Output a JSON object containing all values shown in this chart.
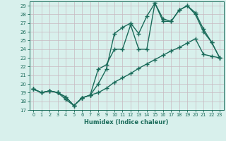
{
  "xlabel": "Humidex (Indice chaleur)",
  "bg_color": "#d8f0ec",
  "plot_bg_color": "#d8f0ec",
  "grid_color": "#c8b8c0",
  "line_color": "#1a6b5a",
  "ylim": [
    17,
    29.5
  ],
  "xlim": [
    -0.5,
    23.5
  ],
  "yticks": [
    17,
    18,
    19,
    20,
    21,
    22,
    23,
    24,
    25,
    26,
    27,
    28,
    29
  ],
  "xticks": [
    0,
    1,
    2,
    3,
    4,
    5,
    6,
    7,
    8,
    9,
    10,
    11,
    12,
    13,
    14,
    15,
    16,
    17,
    18,
    19,
    20,
    21,
    22,
    23
  ],
  "line1_x": [
    0,
    1,
    2,
    3,
    4,
    5,
    6,
    7,
    8,
    9,
    10,
    11,
    12,
    13,
    14,
    15,
    16,
    17,
    18,
    19,
    20,
    21,
    22,
    23
  ],
  "line1_y": [
    19.4,
    19.0,
    19.2,
    19.0,
    18.2,
    17.5,
    18.4,
    18.7,
    19.0,
    19.5,
    20.2,
    20.7,
    21.2,
    21.8,
    22.3,
    22.8,
    23.3,
    23.8,
    24.2,
    24.7,
    25.2,
    23.4,
    23.2,
    23.0
  ],
  "line2_x": [
    0,
    1,
    2,
    3,
    4,
    5,
    6,
    7,
    8,
    9,
    10,
    11,
    12,
    13,
    14,
    15,
    16,
    17,
    18,
    19,
    20,
    21,
    22,
    23
  ],
  "line2_y": [
    19.4,
    19.0,
    19.2,
    19.0,
    18.5,
    17.5,
    18.4,
    18.7,
    21.7,
    22.2,
    24.0,
    24.0,
    26.8,
    24.0,
    24.0,
    29.3,
    27.2,
    27.2,
    28.5,
    29.0,
    28.0,
    26.0,
    24.8,
    23.0
  ],
  "line3_x": [
    0,
    1,
    2,
    3,
    4,
    5,
    6,
    7,
    8,
    9,
    10,
    11,
    12,
    13,
    14,
    15,
    16,
    17,
    18,
    19,
    20,
    21,
    22,
    23
  ],
  "line3_y": [
    19.4,
    19.0,
    19.2,
    19.0,
    18.5,
    17.5,
    18.4,
    18.7,
    20.0,
    21.7,
    25.8,
    26.5,
    27.0,
    25.8,
    27.8,
    29.3,
    27.5,
    27.2,
    28.5,
    29.0,
    28.2,
    26.3,
    24.8,
    23.0
  ]
}
